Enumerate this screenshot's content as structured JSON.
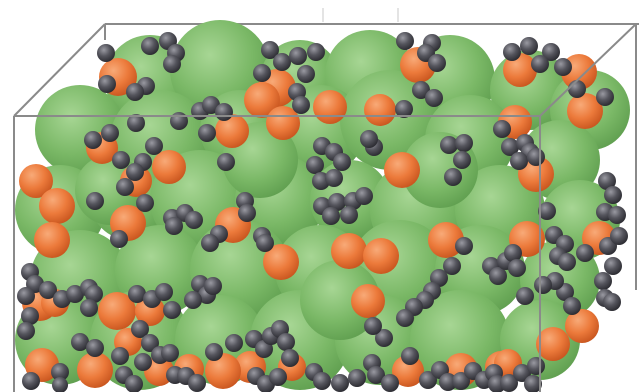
{
  "diagram": {
    "colors": {
      "background": "#ffffff",
      "box_edge": "#8a8a8a",
      "green_dark": "#5f9e4f",
      "green_mid": "#7ab866",
      "green_light": "#9fd08c",
      "orange_dark": "#c9561f",
      "orange_mid": "#ec7a3b",
      "orange_light": "#f6a06c",
      "gray_dark": "#2e2e34",
      "gray_mid": "#55555d",
      "gray_light": "#8c8c94"
    },
    "particle_types": [
      "large-green-particle",
      "medium-orange-particle",
      "small-dark-gray-particle"
    ]
  }
}
